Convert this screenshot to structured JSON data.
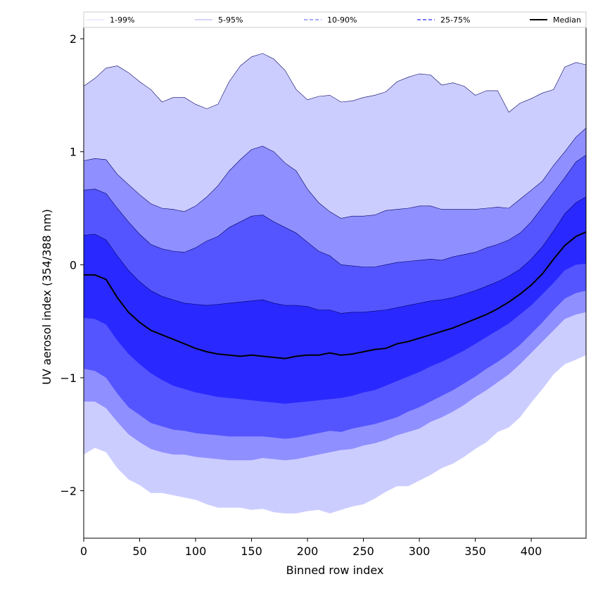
{
  "chart_data": {
    "type": "area",
    "title": "",
    "xlabel": "Binned row index",
    "ylabel": "UV aerosol index (354/388 nm)",
    "xlim": [
      0,
      449
    ],
    "ylim": [
      -2.42,
      2.1
    ],
    "xticks": [
      0,
      50,
      100,
      150,
      200,
      250,
      300,
      350,
      400
    ],
    "yticks": [
      -2,
      -1,
      0,
      1,
      2
    ],
    "ytick_labels": [
      "−2",
      "−1",
      "0",
      "1",
      "2"
    ],
    "grid": false,
    "legend_position": "top",
    "legend": [
      "1-99%",
      "5-95%",
      "10-90%",
      "25-75%",
      "Median"
    ],
    "x": [
      0,
      10,
      20,
      30,
      40,
      50,
      60,
      70,
      80,
      90,
      100,
      110,
      120,
      130,
      140,
      150,
      160,
      170,
      180,
      190,
      200,
      210,
      220,
      230,
      240,
      250,
      260,
      270,
      280,
      290,
      300,
      310,
      320,
      330,
      340,
      350,
      360,
      370,
      380,
      390,
      400,
      410,
      420,
      430,
      440,
      449
    ],
    "bands": [
      {
        "name": "1-99%",
        "color": "#cccdff",
        "upper": [
          1.58,
          1.65,
          1.74,
          1.76,
          1.7,
          1.62,
          1.55,
          1.44,
          1.48,
          1.48,
          1.42,
          1.38,
          1.42,
          1.62,
          1.76,
          1.84,
          1.87,
          1.82,
          1.72,
          1.55,
          1.46,
          1.49,
          1.5,
          1.44,
          1.45,
          1.48,
          1.5,
          1.53,
          1.62,
          1.66,
          1.69,
          1.68,
          1.59,
          1.61,
          1.58,
          1.5,
          1.54,
          1.54,
          1.35,
          1.43,
          1.47,
          1.52,
          1.55,
          1.75,
          1.79,
          1.77
        ],
        "lower": [
          -1.68,
          -1.62,
          -1.66,
          -1.8,
          -1.9,
          -1.95,
          -2.02,
          -2.02,
          -2.04,
          -2.06,
          -2.08,
          -2.12,
          -2.15,
          -2.15,
          -2.15,
          -2.17,
          -2.16,
          -2.19,
          -2.2,
          -2.2,
          -2.18,
          -2.17,
          -2.2,
          -2.17,
          -2.14,
          -2.12,
          -2.07,
          -2.01,
          -1.96,
          -1.96,
          -1.91,
          -1.86,
          -1.8,
          -1.76,
          -1.7,
          -1.63,
          -1.57,
          -1.48,
          -1.44,
          -1.35,
          -1.22,
          -1.1,
          -0.97,
          -0.88,
          -0.84,
          -0.8
        ]
      },
      {
        "name": "5-95%",
        "color": "#8f8fff",
        "upper": [
          0.92,
          0.94,
          0.93,
          0.8,
          0.71,
          0.62,
          0.54,
          0.5,
          0.49,
          0.47,
          0.52,
          0.6,
          0.7,
          0.83,
          0.93,
          1.02,
          1.05,
          1.0,
          0.9,
          0.83,
          0.67,
          0.55,
          0.47,
          0.41,
          0.43,
          0.43,
          0.44,
          0.48,
          0.49,
          0.5,
          0.52,
          0.52,
          0.49,
          0.49,
          0.49,
          0.49,
          0.5,
          0.51,
          0.5,
          0.58,
          0.66,
          0.74,
          0.88,
          1.0,
          1.13,
          1.21
        ],
        "lower": [
          -1.21,
          -1.21,
          -1.27,
          -1.39,
          -1.5,
          -1.57,
          -1.63,
          -1.66,
          -1.68,
          -1.68,
          -1.7,
          -1.71,
          -1.72,
          -1.73,
          -1.73,
          -1.73,
          -1.71,
          -1.72,
          -1.73,
          -1.72,
          -1.7,
          -1.68,
          -1.66,
          -1.64,
          -1.63,
          -1.6,
          -1.58,
          -1.55,
          -1.51,
          -1.48,
          -1.45,
          -1.39,
          -1.35,
          -1.3,
          -1.24,
          -1.17,
          -1.11,
          -1.04,
          -0.97,
          -0.88,
          -0.78,
          -0.68,
          -0.58,
          -0.48,
          -0.44,
          -0.42
        ]
      },
      {
        "name": "10-90%",
        "color": "#5555ff",
        "upper": [
          0.66,
          0.67,
          0.63,
          0.5,
          0.38,
          0.27,
          0.18,
          0.14,
          0.12,
          0.11,
          0.15,
          0.21,
          0.25,
          0.33,
          0.38,
          0.43,
          0.44,
          0.38,
          0.33,
          0.28,
          0.2,
          0.12,
          0.08,
          0.0,
          -0.01,
          -0.02,
          -0.02,
          0.0,
          0.02,
          0.03,
          0.04,
          0.05,
          0.04,
          0.07,
          0.09,
          0.11,
          0.15,
          0.18,
          0.22,
          0.28,
          0.38,
          0.51,
          0.64,
          0.77,
          0.91,
          0.97
        ],
        "lower": [
          -0.92,
          -0.94,
          -1.0,
          -1.14,
          -1.26,
          -1.33,
          -1.4,
          -1.43,
          -1.46,
          -1.47,
          -1.49,
          -1.5,
          -1.51,
          -1.52,
          -1.52,
          -1.52,
          -1.52,
          -1.53,
          -1.54,
          -1.53,
          -1.51,
          -1.49,
          -1.47,
          -1.48,
          -1.45,
          -1.43,
          -1.41,
          -1.38,
          -1.35,
          -1.3,
          -1.26,
          -1.21,
          -1.16,
          -1.11,
          -1.05,
          -0.99,
          -0.92,
          -0.86,
          -0.79,
          -0.71,
          -0.61,
          -0.51,
          -0.4,
          -0.3,
          -0.25,
          -0.23
        ]
      },
      {
        "name": "25-75%",
        "color": "#2929ff",
        "upper": [
          0.26,
          0.27,
          0.22,
          0.08,
          -0.05,
          -0.15,
          -0.23,
          -0.28,
          -0.31,
          -0.34,
          -0.35,
          -0.36,
          -0.35,
          -0.34,
          -0.33,
          -0.32,
          -0.31,
          -0.34,
          -0.36,
          -0.36,
          -0.37,
          -0.4,
          -0.4,
          -0.43,
          -0.42,
          -0.42,
          -0.41,
          -0.4,
          -0.38,
          -0.36,
          -0.34,
          -0.32,
          -0.31,
          -0.29,
          -0.26,
          -0.23,
          -0.19,
          -0.15,
          -0.1,
          -0.04,
          0.05,
          0.16,
          0.3,
          0.45,
          0.55,
          0.6
        ],
        "lower": [
          -0.47,
          -0.48,
          -0.53,
          -0.67,
          -0.79,
          -0.88,
          -0.96,
          -1.02,
          -1.07,
          -1.1,
          -1.13,
          -1.15,
          -1.17,
          -1.18,
          -1.19,
          -1.2,
          -1.21,
          -1.22,
          -1.23,
          -1.22,
          -1.21,
          -1.2,
          -1.19,
          -1.18,
          -1.16,
          -1.13,
          -1.11,
          -1.07,
          -1.03,
          -0.99,
          -0.95,
          -0.9,
          -0.86,
          -0.81,
          -0.76,
          -0.7,
          -0.64,
          -0.58,
          -0.52,
          -0.44,
          -0.36,
          -0.26,
          -0.16,
          -0.05,
          0.0,
          0.01
        ]
      }
    ],
    "series": [
      {
        "name": "Median",
        "color": "#000000",
        "values": [
          -0.09,
          -0.09,
          -0.13,
          -0.29,
          -0.42,
          -0.51,
          -0.58,
          -0.62,
          -0.66,
          -0.7,
          -0.74,
          -0.77,
          -0.79,
          -0.8,
          -0.81,
          -0.8,
          -0.81,
          -0.82,
          -0.83,
          -0.81,
          -0.8,
          -0.8,
          -0.78,
          -0.8,
          -0.79,
          -0.77,
          -0.75,
          -0.74,
          -0.7,
          -0.68,
          -0.65,
          -0.62,
          -0.59,
          -0.56,
          -0.52,
          -0.48,
          -0.44,
          -0.39,
          -0.33,
          -0.26,
          -0.18,
          -0.08,
          0.05,
          0.17,
          0.25,
          0.29
        ]
      }
    ]
  }
}
